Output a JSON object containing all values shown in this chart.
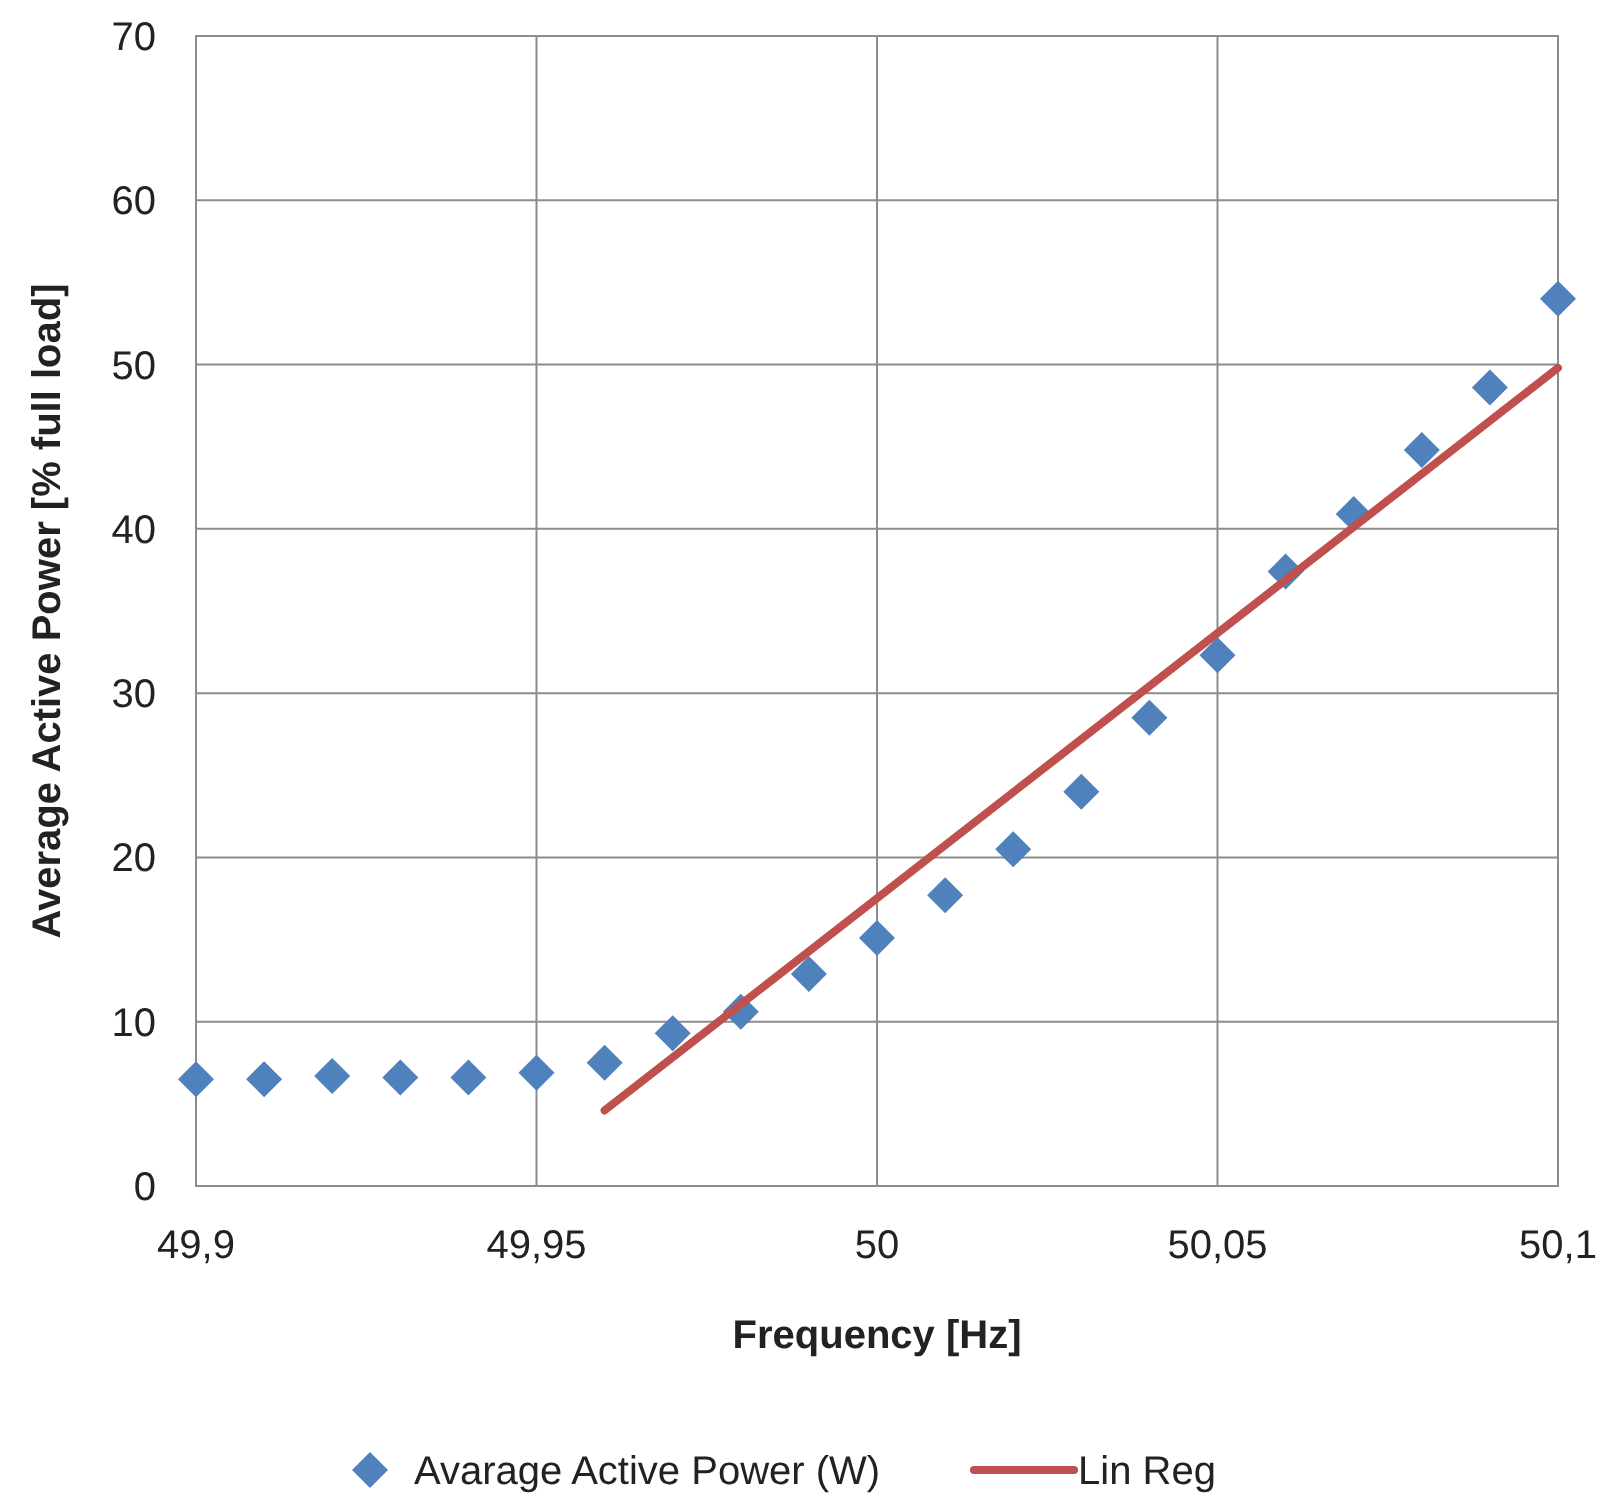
{
  "chart_data": {
    "type": "scatter",
    "xlabel": "Frequency [Hz]",
    "ylabel": "Average Active Power [% full load]",
    "xlim": [
      49.9,
      50.1
    ],
    "xticks": [
      {
        "value": 49.9,
        "label": "49,9"
      },
      {
        "value": 49.95,
        "label": "49,95"
      },
      50,
      {
        "value": 50.05,
        "label": "50,05"
      },
      {
        "value": 50.1,
        "label": "50,1"
      }
    ],
    "ylim": [
      0,
      70
    ],
    "yticks": [
      0,
      10,
      20,
      30,
      40,
      50,
      60,
      70
    ],
    "grid": true,
    "legend": "bottom",
    "series": [
      {
        "name": "Avarage Active Power (W)",
        "marker": "diamond",
        "color": "#4f81bd",
        "x": [
          49.9,
          49.91,
          49.92,
          49.93,
          49.94,
          49.95,
          49.96,
          49.97,
          49.98,
          49.99,
          50,
          50.01,
          50.02,
          50.03,
          50.04,
          50.05,
          50.06,
          50.07,
          50.08,
          50.09,
          50.1
        ],
        "values": [
          6.5,
          6.5,
          6.7,
          6.6,
          6.6,
          6.9,
          7.5,
          9.3,
          10.6,
          12.9,
          15.1,
          17.7,
          20.5,
          24.0,
          28.5,
          32.3,
          37.4,
          40.9,
          44.8,
          48.6,
          54.0
        ]
      },
      {
        "name": "Lin Reg",
        "type": "line",
        "marker": "none",
        "line_style": "solid",
        "color": "#c0504d",
        "x": [
          49.96,
          50.1
        ],
        "values": [
          4.6,
          49.8
        ]
      }
    ]
  }
}
